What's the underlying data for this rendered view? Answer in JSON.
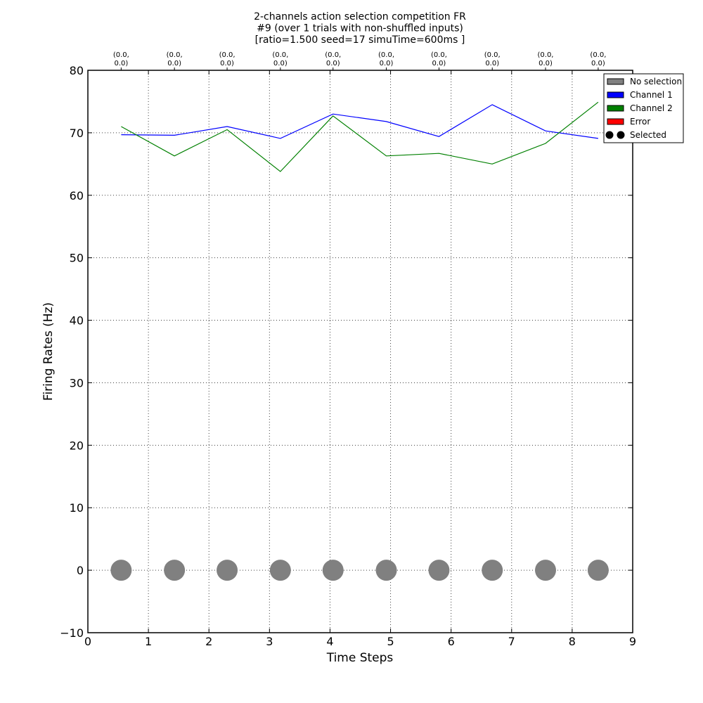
{
  "chart_data": {
    "type": "line",
    "title_lines": [
      "2-channels action selection competition FR",
      "#9 (over 1 trials with non-shuffled inputs)",
      "[ratio=1.500 seed=17 simuTime=600ms ]"
    ],
    "xlabel": "Time Steps",
    "ylabel": "Firing Rates (Hz)",
    "xlim": [
      0,
      9
    ],
    "ylim": [
      -10,
      80
    ],
    "xticks": [
      "0",
      "1",
      "2",
      "3",
      "4",
      "5",
      "6",
      "7",
      "8",
      "9"
    ],
    "yticks": [
      "80",
      "70",
      "60",
      "50",
      "40",
      "30",
      "20",
      "10",
      "0",
      "−10"
    ],
    "grid": true,
    "legend_position": "top-right, outside",
    "x": [
      0.55,
      1.43,
      2.3,
      3.18,
      4.05,
      4.93,
      5.8,
      6.68,
      7.56,
      8.43
    ],
    "top_labels": [
      [
        "(0.0,",
        "0.0)"
      ],
      [
        "(0.0,",
        "0.0)"
      ],
      [
        "(0.0,",
        "0.0)"
      ],
      [
        "(0.0,",
        "0.0)"
      ],
      [
        "(0.0,",
        "0.0)"
      ],
      [
        "(0.0,",
        "0.0)"
      ],
      [
        "(0.0,",
        "0.0)"
      ],
      [
        "(0.0,",
        "0.0)"
      ],
      [
        "(0.0,",
        "0.0)"
      ],
      [
        "(0.0,",
        "0.0)"
      ]
    ],
    "series": [
      {
        "name": "Channel 1",
        "color": "#0000ff",
        "values": [
          69.7,
          69.6,
          71.0,
          69.1,
          73.0,
          71.8,
          69.4,
          74.5,
          70.3,
          69.1
        ]
      },
      {
        "name": "Channel 2",
        "color": "#008000",
        "values": [
          71.0,
          66.3,
          70.5,
          63.8,
          72.7,
          66.3,
          66.7,
          65.0,
          68.3,
          74.9
        ]
      }
    ],
    "markers": {
      "y": 0,
      "color": "#808080",
      "label": "No selection"
    },
    "legend": [
      {
        "label": "No selection",
        "kind": "box",
        "color": "#808080"
      },
      {
        "label": "Channel 1",
        "kind": "box",
        "color": "#0000ff"
      },
      {
        "label": "Channel 2",
        "kind": "box",
        "color": "#008000"
      },
      {
        "label": "Error",
        "kind": "box",
        "color": "#ff0000"
      },
      {
        "label": "Selected",
        "kind": "dots",
        "color": "#000000"
      }
    ]
  }
}
